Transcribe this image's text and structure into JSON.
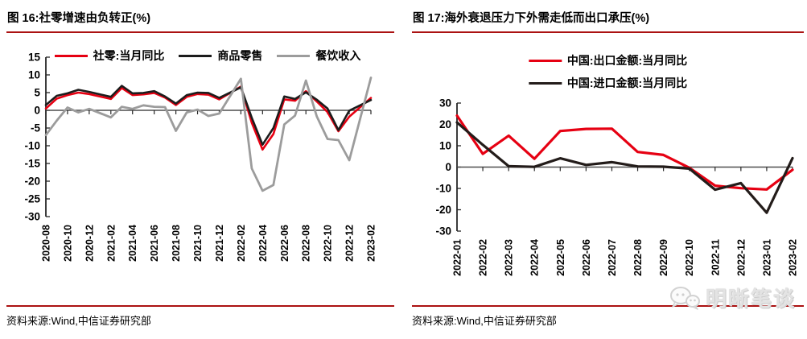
{
  "watermark": {
    "text": "明晰笔谈",
    "icon": "wechat-bubbles-icon"
  },
  "panels": [
    {
      "source": "资料来源:Wind,中信证券研究部"
    },
    {
      "source": "资料来源:Wind,中信证券研究部"
    }
  ],
  "colors": {
    "accent_rule_red": "#ab1212",
    "axis": "#262626",
    "zero_line": "#4d4d4d",
    "tick_text": "#000000",
    "watermark_gray": "#e3e3e3"
  },
  "chart_data": [
    {
      "type": "line",
      "title": "图 16:社零增速由负转正(%)",
      "categories": [
        "2020-08",
        "2020-09",
        "2020-10",
        "2020-11",
        "2020-12",
        "2021-01",
        "2021-02",
        "2021-03",
        "2021-04",
        "2021-05",
        "2021-06",
        "2021-07",
        "2021-08",
        "2021-09",
        "2021-10",
        "2021-11",
        "2021-12",
        "2022-01",
        "2022-02",
        "2022-03",
        "2022-04",
        "2022-05",
        "2022-06",
        "2022-07",
        "2022-08",
        "2022-09",
        "2022-10",
        "2022-11",
        "2022-12",
        "2023-01",
        "2023-02"
      ],
      "series": [
        {
          "name": "社零:当月同比",
          "color": "#e60012",
          "values": [
            0.5,
            3.3,
            4.3,
            5.0,
            4.6,
            null,
            3.2,
            6.3,
            4.3,
            4.5,
            4.9,
            3.6,
            1.5,
            3.8,
            4.6,
            4.4,
            3.1,
            null,
            6.7,
            -3.5,
            -11.1,
            -6.7,
            3.1,
            2.7,
            5.4,
            2.5,
            -0.5,
            -5.9,
            -1.8,
            null,
            3.5
          ]
        },
        {
          "name": "商品零售",
          "color": "#1c1c1c",
          "values": [
            1.5,
            4.1,
            4.8,
            5.8,
            5.2,
            null,
            3.8,
            6.9,
            4.8,
            4.9,
            5.4,
            3.9,
            1.9,
            4.3,
            5.0,
            4.9,
            3.5,
            null,
            6.5,
            -2.1,
            -9.7,
            -5.0,
            3.9,
            3.2,
            5.1,
            3.0,
            0.5,
            -5.6,
            -0.1,
            null,
            2.9
          ]
        },
        {
          "name": "餐饮收入",
          "color": "#9c9c9c",
          "values": [
            -7.0,
            -2.9,
            0.8,
            -0.6,
            0.4,
            null,
            -2.0,
            1.0,
            0.4,
            1.4,
            1.0,
            0.9,
            -5.8,
            -0.6,
            0.2,
            -1.6,
            -0.9,
            null,
            8.9,
            -16.4,
            -22.7,
            -21.1,
            -4.0,
            -1.5,
            8.4,
            -1.7,
            -8.1,
            -8.4,
            -14.1,
            null,
            9.2
          ]
        }
      ],
      "ylim": [
        -30,
        15
      ],
      "yticks": [
        15,
        10,
        5,
        0,
        -5,
        -10,
        -15,
        -20,
        -25,
        -30
      ],
      "x_label_every": 2,
      "x_tick_every": 2,
      "legend_position": "top-row",
      "grid": false
    },
    {
      "type": "line",
      "title": "图 17:海外衰退压力下外需走低而出口承压(%)",
      "categories": [
        "2022-01",
        "2022-02",
        "2022-03",
        "2022-04",
        "2022-05",
        "2022-06",
        "2022-07",
        "2022-08",
        "2022-09",
        "2022-10",
        "2022-11",
        "2022-12",
        "2023-01",
        "2023-02"
      ],
      "series": [
        {
          "name": "中国:出口金额:当月同比",
          "color": "#e60012",
          "values": [
            24.1,
            6.2,
            14.7,
            3.9,
            16.9,
            17.9,
            18.0,
            7.1,
            5.7,
            -0.3,
            -8.7,
            -9.9,
            -10.5,
            -1.3
          ]
        },
        {
          "name": "中国:进口金额:当月同比",
          "color": "#231c1a",
          "values": [
            20.9,
            10.4,
            0.4,
            0.1,
            4.1,
            1.0,
            2.3,
            0.3,
            0.2,
            -0.7,
            -10.6,
            -7.5,
            -21.4,
            4.2
          ]
        }
      ],
      "ylim": [
        -30,
        30
      ],
      "yticks": [
        30,
        20,
        10,
        0,
        -10,
        -20,
        -30
      ],
      "x_label_every": 1,
      "x_tick_every": 1,
      "legend_position": "top-stacked",
      "grid": false
    }
  ]
}
